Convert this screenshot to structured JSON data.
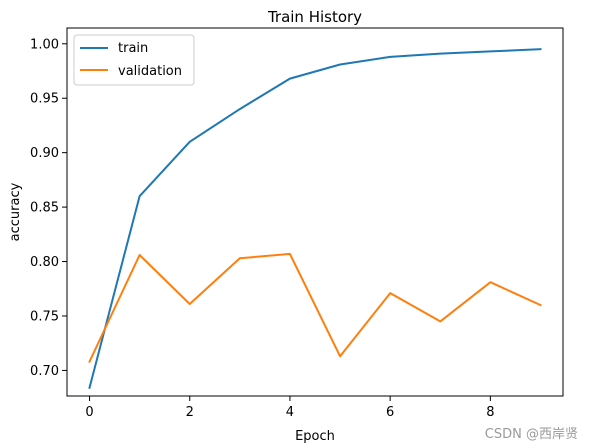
{
  "chart_data": {
    "type": "line",
    "title": "Train History",
    "xlabel": "Epoch",
    "ylabel": "accuracy",
    "x": [
      0,
      1,
      2,
      3,
      4,
      5,
      6,
      7,
      8,
      9
    ],
    "xlim": [
      -0.45,
      9.45
    ],
    "ylim": [
      0.6765,
      1.0145
    ],
    "xticks": [
      0,
      2,
      4,
      6,
      8
    ],
    "yticks": [
      0.7,
      0.75,
      0.8,
      0.85,
      0.9,
      0.95,
      1.0
    ],
    "ytick_labels": [
      "0.70",
      "0.75",
      "0.80",
      "0.85",
      "0.90",
      "0.95",
      "1.00"
    ],
    "grid": false,
    "legend_placement": "top-left",
    "series": [
      {
        "name": "train",
        "color": "#1f77b4",
        "values": [
          0.684,
          0.86,
          0.91,
          0.94,
          0.968,
          0.981,
          0.988,
          0.991,
          0.993,
          0.995
        ]
      },
      {
        "name": "validation",
        "color": "#ff7f0e",
        "values": [
          0.708,
          0.806,
          0.761,
          0.803,
          0.807,
          0.713,
          0.771,
          0.745,
          0.781,
          0.76
        ]
      }
    ]
  },
  "watermark": "CSDN @西岸贤"
}
